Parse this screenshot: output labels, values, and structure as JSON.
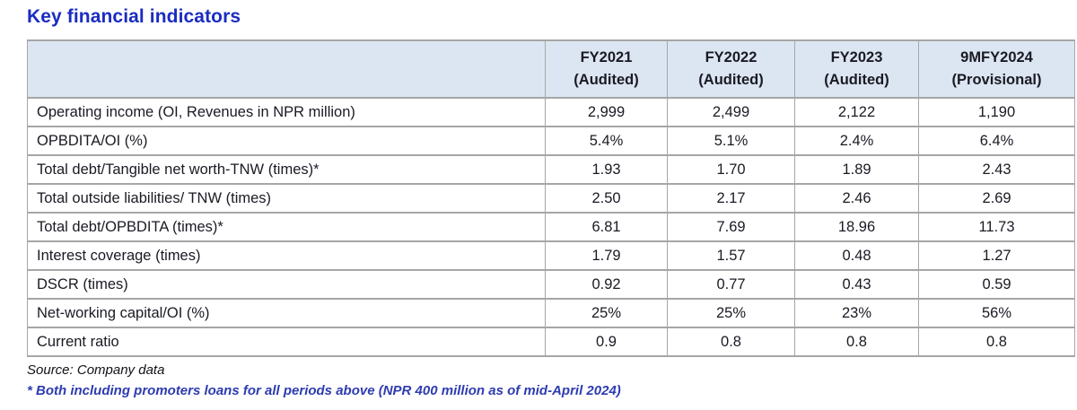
{
  "page": {
    "title": "Key financial indicators",
    "source": "Source: Company data",
    "footnote": "* Both including promoters loans for all periods above (NPR 400 million as of mid-April 2024)"
  },
  "table": {
    "header": {
      "label": "",
      "columns": [
        {
          "period": "FY2021",
          "status": "(Audited)"
        },
        {
          "period": "FY2022",
          "status": "(Audited)"
        },
        {
          "period": "FY2023",
          "status": "(Audited)"
        },
        {
          "period": "9MFY2024",
          "status": "(Provisional)"
        }
      ]
    },
    "rows": [
      {
        "label": "Operating income (OI, Revenues in NPR million)",
        "values": [
          "2,999",
          "2,499",
          "2,122",
          "1,190"
        ]
      },
      {
        "label": "OPBDITA/OI (%)",
        "values": [
          "5.4%",
          "5.1%",
          "2.4%",
          "6.4%"
        ]
      },
      {
        "label": "Total debt/Tangible net worth-TNW (times)*",
        "values": [
          "1.93",
          "1.70",
          "1.89",
          "2.43"
        ]
      },
      {
        "label": "Total outside liabilities/ TNW (times)",
        "values": [
          "2.50",
          "2.17",
          "2.46",
          "2.69"
        ]
      },
      {
        "label": "Total debt/OPBDITA (times)*",
        "values": [
          "6.81",
          "7.69",
          "18.96",
          "11.73"
        ]
      },
      {
        "label": "Interest coverage (times)",
        "values": [
          "1.79",
          "1.57",
          "0.48",
          "1.27"
        ]
      },
      {
        "label": "DSCR (times)",
        "values": [
          "0.92",
          "0.77",
          "0.43",
          "0.59"
        ]
      },
      {
        "label": "Net-working capital/OI (%)",
        "values": [
          "25%",
          "25%",
          "23%",
          "56%"
        ]
      },
      {
        "label": "Current ratio",
        "values": [
          "0.9",
          "0.8",
          "0.8",
          "0.8"
        ]
      }
    ]
  },
  "colors": {
    "title_blue": "#1b2cc1",
    "header_bg": "#dce6f2",
    "border_gray": "#a6a6a6",
    "footnote_blue": "#2e3cb0"
  }
}
